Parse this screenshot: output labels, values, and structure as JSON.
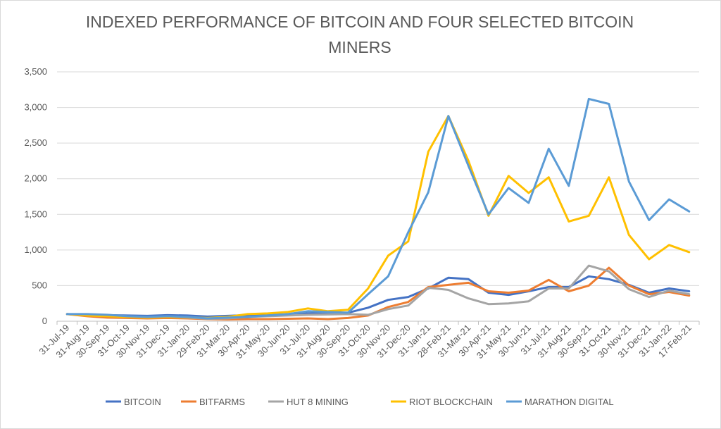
{
  "chart_data": {
    "type": "line",
    "title_lines": [
      "INDEXED PERFORMANCE OF BITCOIN AND FOUR SELECTED BITCOIN",
      "MINERS"
    ],
    "xlabel": "",
    "ylabel": "",
    "ylim": [
      0,
      3500
    ],
    "yticks": [
      0,
      500,
      1000,
      1500,
      2000,
      2500,
      3000,
      3500
    ],
    "ytick_labels": [
      "0",
      "500",
      "1,000",
      "1,500",
      "2,000",
      "2,500",
      "3,000",
      "3,500"
    ],
    "grid": true,
    "legend_position": "bottom",
    "categories": [
      "31-Jul-19",
      "31-Aug-19",
      "30-Sep-19",
      "31-Oct-19",
      "30-Nov-19",
      "31-Dec-19",
      "31-Jan-20",
      "29-Feb-20",
      "31-Mar-20",
      "30-Apr-20",
      "31-May-20",
      "30-Jun-20",
      "31-Jul-20",
      "31-Aug-20",
      "30-Sep-20",
      "31-Oct-20",
      "30-Nov-20",
      "31-Dec-20",
      "31-Jan-21",
      "28-Feb-21",
      "31-Mar-21",
      "30-Apr-21",
      "31-May-21",
      "30-Jun-21",
      "31-Jul-21",
      "31-Aug-21",
      "30-Sep-21",
      "31-Oct-21",
      "30-Nov-21",
      "31-Dec-21",
      "31-Jan-22",
      "17-Feb-21"
    ],
    "series": [
      {
        "name": "BITCOIN",
        "color": "#4472c4",
        "values": [
          100,
          90,
          85,
          80,
          75,
          85,
          80,
          65,
          75,
          85,
          90,
          95,
          110,
          115,
          120,
          190,
          300,
          340,
          460,
          610,
          590,
          400,
          370,
          420,
          480,
          480,
          630,
          590,
          510,
          400,
          460,
          420
        ]
      },
      {
        "name": "BITFARMS",
        "color": "#ed7d31",
        "values": [
          100,
          70,
          50,
          45,
          40,
          45,
          40,
          30,
          25,
          30,
          30,
          35,
          40,
          30,
          45,
          80,
          200,
          270,
          480,
          510,
          540,
          420,
          400,
          430,
          580,
          420,
          500,
          750,
          500,
          380,
          410,
          360
        ]
      },
      {
        "name": "HUT 8 MINING",
        "color": "#a5a5a5",
        "values": [
          100,
          90,
          80,
          65,
          55,
          60,
          50,
          35,
          40,
          60,
          70,
          80,
          90,
          95,
          100,
          90,
          170,
          220,
          470,
          440,
          320,
          240,
          250,
          280,
          460,
          460,
          780,
          700,
          450,
          340,
          430,
          380
        ]
      },
      {
        "name": "RIOT BLOCKCHAIN",
        "color": "#ffc000",
        "values": [
          100,
          80,
          70,
          60,
          50,
          60,
          55,
          45,
          60,
          100,
          110,
          130,
          180,
          140,
          160,
          460,
          920,
          1120,
          2380,
          2880,
          2250,
          1480,
          2040,
          1800,
          2020,
          1400,
          1480,
          2020,
          1210,
          870,
          1070,
          970
        ]
      },
      {
        "name": "MARATHON DIGITAL",
        "color": "#5b9bd5",
        "values": [
          100,
          100,
          90,
          70,
          60,
          70,
          60,
          40,
          50,
          60,
          80,
          100,
          140,
          130,
          120,
          380,
          630,
          1250,
          1810,
          2880,
          2180,
          1500,
          1870,
          1660,
          2420,
          1900,
          3120,
          3050,
          1960,
          1420,
          1710,
          1540
        ]
      }
    ]
  }
}
